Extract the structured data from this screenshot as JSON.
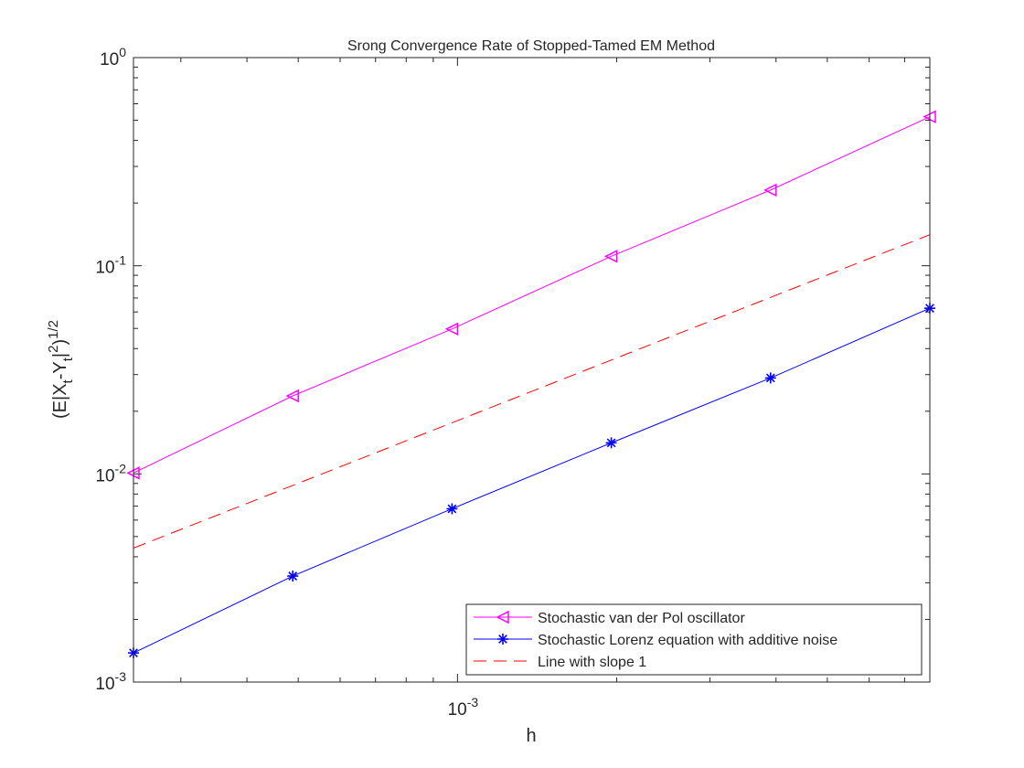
{
  "chart_data": {
    "type": "line",
    "title": "Srong Convergence Rate of Stopped-Tamed EM Method",
    "xlabel": "h",
    "ylabel": "(E|X_t-Y_t|^2)^1/2",
    "xscale": "log",
    "yscale": "log",
    "xlim": [
      0.00024414,
      0.0078125
    ],
    "ylim": [
      0.001,
      1
    ],
    "grid": false,
    "legend_position": "bottom-right",
    "xticks": [
      {
        "value": 0.001,
        "base": "10",
        "exp": "-3"
      }
    ],
    "yticks": [
      {
        "value": 0.001,
        "base": "10",
        "exp": "-3"
      },
      {
        "value": 0.01,
        "base": "10",
        "exp": "-2"
      },
      {
        "value": 0.1,
        "base": "10",
        "exp": "-1"
      },
      {
        "value": 1,
        "base": "10",
        "exp": "0"
      }
    ],
    "series": [
      {
        "name": "Stochastic van der Pol oscillator",
        "color": "#ff00ff",
        "marker": "triangle-left",
        "line": "solid",
        "x": [
          0.00024414,
          0.00048828,
          0.00097656,
          0.0019531,
          0.0039063,
          0.0078125
        ],
        "y": [
          0.0101,
          0.0237,
          0.0497,
          0.111,
          0.231,
          0.52
        ]
      },
      {
        "name": "Stochastic Lorenz equation with additive noise",
        "color": "#0000ff",
        "marker": "asterisk",
        "line": "solid",
        "x": [
          0.00024414,
          0.00048828,
          0.00097656,
          0.0019531,
          0.0039063,
          0.0078125
        ],
        "y": [
          0.00138,
          0.00323,
          0.0068,
          0.0141,
          0.0289,
          0.0625
        ]
      },
      {
        "name": "Line with slope 1",
        "color": "#ff0000",
        "marker": "none",
        "line": "dashed",
        "x": [
          0.00024414,
          0.0078125
        ],
        "y": [
          0.0044,
          0.141
        ]
      }
    ]
  }
}
